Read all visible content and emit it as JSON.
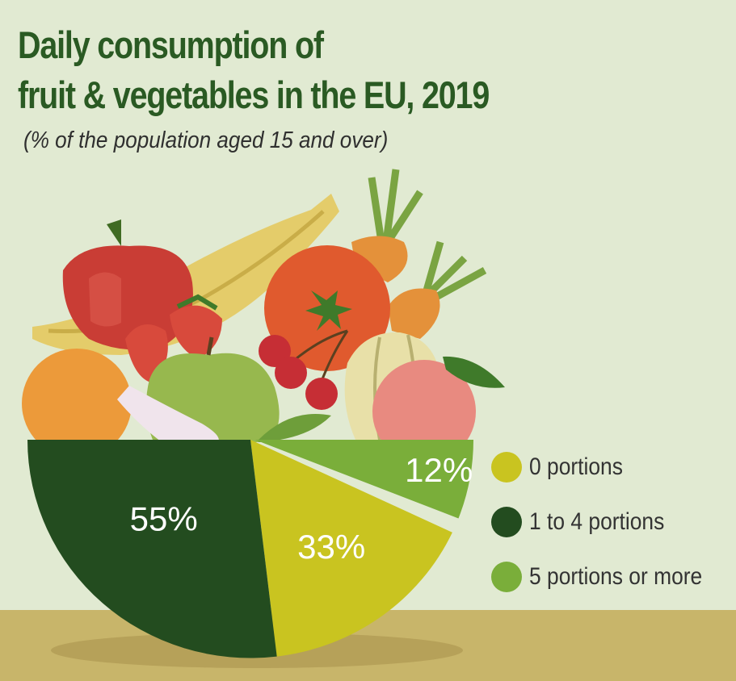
{
  "title_line1": "Daily consumption of",
  "title_line2": "fruit & vegetables in the EU, 2019",
  "subtitle": "(% of  the population aged 15 and over)",
  "colors": {
    "background": "#e1ead2",
    "table": "#c8b56a",
    "title": "#2a5a23",
    "zero_portions": "#c9c420",
    "one_to_four": "#234c1f",
    "five_or_more": "#7aae3a"
  },
  "chart_data": {
    "type": "pie",
    "title": "Daily consumption of fruit & vegetables in the EU, 2019",
    "subtitle": "(% of  the population aged 15 and over)",
    "unit": "%",
    "legend_position": "right",
    "slices": [
      {
        "name": "0 portions",
        "value": 33,
        "label": "33%",
        "color": "#c9c420"
      },
      {
        "name": "1 to 4 portions",
        "value": 55,
        "label": "55%",
        "color": "#234c1f"
      },
      {
        "name": "5 portions or more",
        "value": 12,
        "label": "12%",
        "color": "#7aae3a"
      }
    ]
  }
}
